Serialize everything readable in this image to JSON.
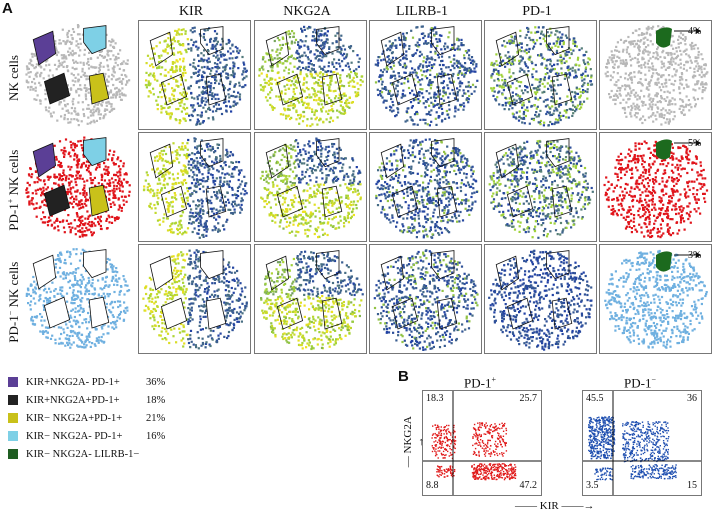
{
  "figure": {
    "panel_a_label": "A",
    "panel_b_label": "B",
    "columns": [
      "KIR",
      "NKG2A",
      "LILRB-1",
      "PD-1"
    ],
    "rows": [
      {
        "label": "NK cells",
        "percent": "4%"
      },
      {
        "label": "PD-1+ NK cells",
        "label_main": "PD-1",
        "label_sup": "+",
        "label_tail": " NK cells",
        "percent": "5%"
      },
      {
        "label": "PD-1- NK cells",
        "label_main": "PD-1",
        "label_sup": "−",
        "label_tail": " NK cells",
        "percent": "3%"
      }
    ]
  },
  "legend": [
    {
      "text": "KIR+NKG2A- PD-1+",
      "percent": "36%",
      "color": "#5b3f96"
    },
    {
      "text": "KIR+NKG2A+PD-1+",
      "percent": "18%",
      "color": "#222222"
    },
    {
      "text": "KIR− NKG2A+PD-1+",
      "percent": "21%",
      "color": "#c9c11a"
    },
    {
      "text": "KIR− NKG2A- PD-1+",
      "percent": "16%",
      "color": "#7ed0e6"
    },
    {
      "text": "KIR− NKG2A- LILRB-1−",
      "percent": "",
      "color": "#1f5e22"
    }
  ],
  "colors": {
    "grey": "#b8b8b8",
    "red": "#e0141b",
    "lightblue": "#6fb0e0",
    "darkgreen": "#1c6a1e",
    "heat_low": "#1f3fa6",
    "heat_mid": "#9fd23a",
    "heat_high": "#f0e21e",
    "flow_red": "#e01a1a",
    "flow_blue": "#1f4fb0"
  },
  "chart_data": [
    {
      "type": "scatter",
      "title": "PD-1+",
      "xlabel": "KIR",
      "ylabel": "NKG2A",
      "quadrants": {
        "top_left": 18.3,
        "top_right": 25.7,
        "bottom_left": 8.8,
        "bottom_right": 47.2
      }
    },
    {
      "type": "scatter",
      "title": "PD-1−",
      "xlabel": "KIR",
      "ylabel": "NKG2A",
      "quadrants": {
        "top_left": 45.5,
        "top_right": 36,
        "bottom_left": 3.5,
        "bottom_right": 15
      }
    }
  ],
  "flow_labels": {
    "left": {
      "title_main": "PD-1",
      "title_sup": "+",
      "tl": "18.3",
      "tr": "25.7",
      "bl": "8.8",
      "br": "47.2"
    },
    "right": {
      "title_main": "PD-1",
      "title_sup": "−",
      "tl": "45.5",
      "tr": "36",
      "bl": "3.5",
      "br": "15"
    },
    "xlabel": "KIR",
    "ylabel": "NKG2A"
  }
}
